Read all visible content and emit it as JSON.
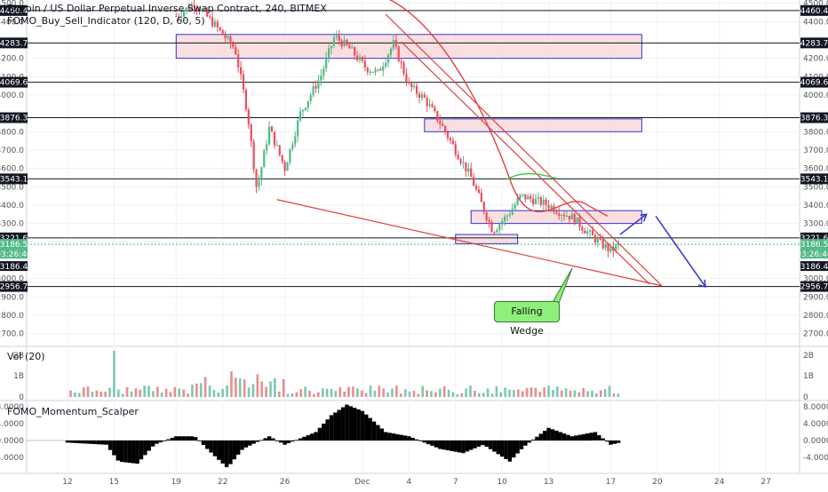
{
  "chart_data": [
    {
      "type": "candlestick",
      "title": "Bitcoin / US Dollar Perpetual Inverse Swap Contract, 240, BITMEX",
      "indicator_label": "FOMO_Buy_Sell_Indicator (120, D, 60, 5)",
      "x_tick_labels": [
        "12",
        "15",
        "19",
        "22",
        "26",
        "Dec",
        "4",
        "7",
        "10",
        "13",
        "17",
        "20",
        "24",
        "27"
      ],
      "y_tick_labels": [
        "4500.0",
        "4400.0",
        "4200.0",
        "4100.0",
        "4000.0",
        "3800.0",
        "3700.0",
        "3600.0",
        "3500.0",
        "3400.0",
        "3300.0",
        "3200.0",
        "3000.0",
        "2900.0",
        "2800.0",
        "2700.0"
      ],
      "levels": [
        4460.4,
        4283.7,
        4069.6,
        3876.3,
        3543.1,
        3221.6,
        2956.7
      ],
      "level_labels": [
        "4460.4",
        "4283.7",
        "4069.6",
        "3876.3",
        "3543.1",
        "3221.6",
        "2956.7"
      ],
      "current_price": "3186.5",
      "countdown": "03:26:40",
      "prev_close_label": "3186.4",
      "annotation": "Falling Wedge",
      "zones": [
        {
          "x_from": "Nov 19",
          "x_to": "Dec 19",
          "y_from": 4200,
          "y_to": 4330
        },
        {
          "x_from": "Dec 5",
          "x_to": "Dec 19",
          "y_from": 3800,
          "y_to": 3870
        },
        {
          "x_from": "Dec 8",
          "x_to": "Dec 19",
          "y_from": 3300,
          "y_to": 3370
        },
        {
          "x_from": "Dec 7",
          "x_to": "Dec 11",
          "y_from": 3190,
          "y_to": 3240
        }
      ],
      "colors": {
        "up": "#53b987",
        "down": "#eb4d5c",
        "zone_fill": "#f7d4d4",
        "zone_border": "#3333cc",
        "projection": "#3333cc",
        "wedge": "#e04040"
      }
    },
    {
      "type": "bar",
      "title": "Vol (20)",
      "y_tick_labels": [
        "2B",
        "1B",
        "0"
      ]
    },
    {
      "type": "area",
      "title": "FOMO_Momentum_Scalper",
      "y_tick_labels": [
        "8.0000",
        "4.0000",
        "0.0000",
        "-4.0000"
      ],
      "colors": {
        "positive": "#7fbf7f",
        "negative": "#f08080",
        "signal": "#1b7a1b"
      }
    }
  ]
}
